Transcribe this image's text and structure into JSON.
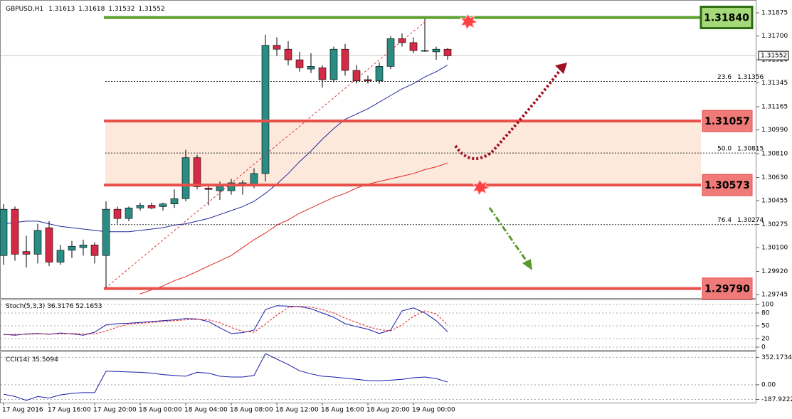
{
  "chart_data": [
    {
      "type": "candlestick",
      "title": "GBPUSD,H1",
      "quote": [
        1.31613,
        1.31618,
        1.31532,
        1.31552
      ],
      "categories": [
        "17 Aug 2016",
        null,
        null,
        null,
        "17 Aug 16:00",
        null,
        null,
        null,
        "17 Aug 20:00",
        null,
        null,
        null,
        "18 Aug 00:00",
        null,
        null,
        null,
        "18 Aug 04:00",
        null,
        null,
        null,
        "18 Aug 08:00",
        null,
        null,
        null,
        "18 Aug 12:00",
        null,
        null,
        null,
        "18 Aug 16:00",
        null,
        null,
        null,
        "18 Aug 20:00",
        null,
        null,
        null,
        "19 Aug 00:00",
        null,
        null,
        null
      ],
      "open": [
        1.3004,
        1.3039,
        1.3007,
        1.3005,
        1.3025,
        1.2999,
        1.3008,
        1.301,
        1.3012,
        1.3004,
        1.3039,
        1.3032,
        1.304,
        1.3042,
        1.3041,
        1.3043,
        1.3047,
        1.3078,
        1.3055,
        1.3053,
        1.3053,
        1.3057,
        1.3058,
        1.3066,
        1.3163,
        1.316,
        1.3152,
        1.3145,
        1.3146,
        1.3137,
        1.316,
        1.3144,
        1.3137,
        1.3136,
        1.3147,
        1.3168,
        1.3165,
        1.3159,
        1.3158,
        1.316
      ],
      "high": [
        1.3043,
        1.3041,
        1.3019,
        1.3028,
        1.303,
        1.3012,
        1.3015,
        1.3016,
        1.3014,
        1.3045,
        1.3041,
        1.3041,
        1.3044,
        1.3044,
        1.3044,
        1.3054,
        1.3084,
        1.308,
        1.3057,
        1.306,
        1.3062,
        1.3061,
        1.307,
        1.3171,
        1.3169,
        1.3166,
        1.3158,
        1.3157,
        1.3148,
        1.3162,
        1.3164,
        1.3148,
        1.314,
        1.315,
        1.317,
        1.3172,
        1.3169,
        1.3183,
        1.3162,
        1.3161
      ],
      "low": [
        1.2997,
        1.3,
        1.2995,
        1.2998,
        1.2996,
        1.2997,
        1.3002,
        1.3004,
        1.2998,
        1.298,
        1.3028,
        1.303,
        1.3038,
        1.3039,
        1.3038,
        1.304,
        1.3045,
        1.3054,
        1.3042,
        1.3046,
        1.305,
        1.305,
        1.3055,
        1.306,
        1.3155,
        1.3148,
        1.3143,
        1.3142,
        1.3131,
        1.3135,
        1.314,
        1.3134,
        1.3134,
        1.3134,
        1.3145,
        1.3162,
        1.3157,
        1.3158,
        1.3152,
        1.3152
      ],
      "close": [
        1.3039,
        1.3005,
        1.3005,
        1.3023,
        1.2999,
        1.3008,
        1.3011,
        1.3012,
        1.3004,
        1.3039,
        1.3032,
        1.304,
        1.3042,
        1.304,
        1.3043,
        1.3047,
        1.3078,
        1.3056,
        1.3054,
        1.3058,
        1.3059,
        1.3059,
        1.3066,
        1.3163,
        1.316,
        1.3152,
        1.3146,
        1.3147,
        1.3137,
        1.316,
        1.3144,
        1.3136,
        1.3136,
        1.3147,
        1.3168,
        1.3165,
        1.3159,
        1.3159,
        1.316,
        1.3155
      ],
      "up_color": "#2a8c82",
      "down_color": "#d42a45",
      "series": [
        {
          "color": "#1f2a9c",
          "values": [
            1.3028,
            1.3029,
            1.303,
            1.303,
            1.3028,
            1.3026,
            1.3025,
            1.3024,
            1.3023,
            1.3022,
            1.3022,
            1.3022,
            1.3023,
            1.3024,
            1.3025,
            1.3027,
            1.3028,
            1.303,
            1.3032,
            1.3035,
            1.3038,
            1.3041,
            1.3045,
            1.3051,
            1.3058,
            1.3066,
            1.3075,
            1.3083,
            1.3092,
            1.31,
            1.3107,
            1.3111,
            1.3115,
            1.312,
            1.3125,
            1.313,
            1.3134,
            1.3139,
            1.3143,
            1.3148
          ]
        },
        {
          "color": "#e02424",
          "values": [
            null,
            null,
            null,
            null,
            null,
            null,
            null,
            null,
            null,
            null,
            null,
            null,
            1.2975,
            1.2978,
            1.2981,
            1.2985,
            1.2988,
            1.2992,
            1.2996,
            1.3,
            1.3004,
            1.301,
            1.3016,
            1.3021,
            1.3027,
            1.3031,
            1.3036,
            1.304,
            1.3044,
            1.3048,
            1.3051,
            1.3055,
            1.3058,
            1.306,
            1.3062,
            1.3064,
            1.3066,
            1.3069,
            1.3071,
            1.3074
          ]
        }
      ],
      "ylim": [
        1.29713,
        1.31956
      ],
      "yticks": [
        1.31875,
        {
          "value": 1.317,
          "label": "1.31700"
        },
        {
          "value": 1.3152,
          "label": "1.31520"
        },
        1.31345,
        1.31165,
        {
          "value": 1.3099,
          "label": "1.30990"
        },
        {
          "value": 1.3081,
          "label": "1.30810"
        },
        {
          "value": 1.3063,
          "label": "1.30630"
        },
        1.30455,
        1.30275,
        {
          "value": 1.301,
          "label": "1.30100"
        },
        {
          "value": 1.2992,
          "label": "1.29920"
        },
        1.29745
      ],
      "levels": [
        {
          "value": 1.3184,
          "label": "1.31840",
          "color": "#5aa02c"
        },
        {
          "value": 1.31057,
          "color": "#e8504a"
        },
        {
          "value": 1.30573,
          "color": "#e8504a"
        },
        {
          "value": 1.2979,
          "label": "1.29790",
          "color": "#e8504a"
        }
      ],
      "fibonacci": [
        {
          "ratio": 23.6,
          "value": 1.31356
        },
        {
          "ratio": {
            "value": 50,
            "label": "50.0"
          },
          "value": 1.30815
        },
        {
          "ratio": 76.4,
          "value": 1.30274
        }
      ]
    },
    {
      "type": "line",
      "title": "Stoch(5,3,3)",
      "readout": [
        36.3176,
        52.1653
      ],
      "series": [
        {
          "color": "#1a1aa8",
          "values": [
            30,
            28,
            31,
            32,
            30,
            33,
            31,
            28,
            35,
            52,
            55,
            56,
            58,
            60,
            62,
            64,
            67,
            66,
            60,
            45,
            32,
            34,
            40,
            88,
            97,
            96,
            95,
            90,
            80,
            70,
            55,
            48,
            42,
            32,
            40,
            85,
            92,
            80,
            62,
            36
          ]
        },
        {
          "color": "#e02020",
          "dashed": true,
          "values": [
            29,
            30,
            30,
            31,
            31,
            31,
            32,
            31,
            31,
            38,
            47,
            54,
            56,
            58,
            60,
            62,
            64,
            65,
            64,
            57,
            46,
            37,
            35,
            54,
            75,
            93,
            96,
            94,
            88,
            80,
            68,
            58,
            48,
            41,
            38,
            52,
            72,
            85,
            78,
            52
          ]
        }
      ],
      "ylim": [
        -6.7,
        110
      ],
      "yticks": [
        100,
        80,
        50,
        20,
        0
      ]
    },
    {
      "type": "line",
      "title": "CCI(14)",
      "readout": [
        35.5094
      ],
      "series": [
        {
          "color": "#1a1aa8",
          "values": [
            -120,
            -150,
            -200,
            -150,
            -170,
            -130,
            -110,
            -100,
            -100,
            175,
            170,
            165,
            160,
            150,
            130,
            120,
            110,
            160,
            150,
            110,
            100,
            100,
            120,
            400,
            330,
            260,
            180,
            140,
            110,
            100,
            85,
            70,
            55,
            50,
            60,
            70,
            90,
            100,
            80,
            35
          ]
        }
      ],
      "ylim": [
        -229,
        419
      ],
      "yticks": [
        352.1734,
        {
          "value": 0,
          "label": "0.00"
        },
        -187.9222
      ]
    }
  ]
}
